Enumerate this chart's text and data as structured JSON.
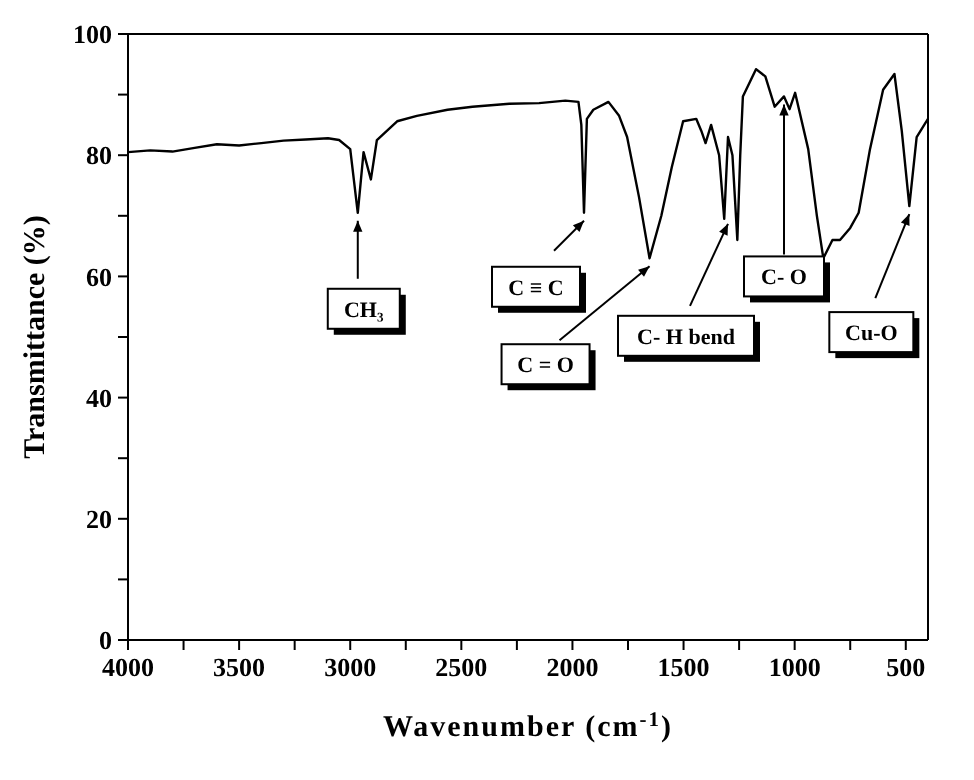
{
  "chart_data": {
    "type": "line",
    "xlabel": "Wavenumber (cm$^{-1}$)",
    "ylabel": "Transmittance (%)",
    "x": [
      4000,
      3900,
      3800,
      3700,
      3600,
      3500,
      3400,
      3300,
      3200,
      3100,
      3050,
      3000,
      2966,
      2940,
      2907,
      2880,
      2789,
      2700,
      2562,
      2450,
      2284,
      2150,
      2032,
      1973,
      1960,
      1948,
      1935,
      1906,
      1838,
      1790,
      1754,
      1700,
      1653,
      1600,
      1553,
      1502,
      1443,
      1420,
      1401,
      1376,
      1340,
      1317,
      1300,
      1280,
      1258,
      1245,
      1233,
      1174,
      1132,
      1090,
      1048,
      1023,
      998,
      939,
      900,
      871,
      830,
      796,
      750,
      712,
      661,
      602,
      551,
      518,
      484,
      451,
      417,
      400
    ],
    "series": [
      {
        "color": "#000000",
        "values": [
          80.5,
          80.8,
          80.6,
          81.2,
          81.8,
          81.6,
          82.0,
          82.4,
          82.6,
          82.8,
          82.5,
          81.0,
          70.5,
          80.5,
          76.0,
          82.5,
          85.6,
          86.5,
          87.5,
          88.0,
          88.5,
          88.6,
          89.0,
          88.8,
          85.0,
          70.5,
          86.0,
          87.5,
          88.8,
          86.5,
          83.0,
          73.0,
          63.0,
          70.0,
          78.0,
          85.6,
          86.0,
          84.0,
          82.0,
          85.0,
          80.0,
          69.5,
          83.0,
          80.0,
          66.0,
          80.0,
          89.7,
          94.2,
          93.0,
          88.0,
          89.7,
          87.6,
          90.3,
          81.0,
          70.0,
          63.0,
          66.0,
          66.0,
          68.0,
          70.5,
          81.0,
          90.8,
          93.4,
          84.0,
          71.6,
          83.0,
          85.0,
          86.0
        ]
      }
    ],
    "xlim": [
      4000,
      400
    ],
    "xticks": [
      4000,
      {
        "value": 3750,
        "label": null
      },
      3500,
      {
        "value": 3250,
        "label": null
      },
      3000,
      {
        "value": 2750,
        "label": null
      },
      2500,
      {
        "value": 2250,
        "label": null
      },
      2000,
      {
        "value": 1750,
        "label": null
      },
      1500,
      {
        "value": 1250,
        "label": null
      },
      1000,
      {
        "value": 750,
        "label": null
      },
      500
    ],
    "ylim": [
      0,
      100
    ],
    "yticks": [
      0,
      {
        "value": 10,
        "label": null
      },
      20,
      {
        "value": 30,
        "label": null
      },
      40,
      {
        "value": 50,
        "label": null
      },
      60,
      {
        "value": 70,
        "label": null
      },
      80,
      {
        "value": 90,
        "label": null
      },
      100
    ],
    "grid": false,
    "legend": false,
    "marker": "none",
    "line_style": "solid",
    "annotations": [
      {
        "text": "CH₃",
        "x": 2966,
        "y": 70.5
      },
      {
        "text": "C ≡ C",
        "x": 1948,
        "y": 70.5
      },
      {
        "text": "C = O",
        "x": 1653,
        "y": 63
      },
      {
        "text": "C- H bend",
        "x": 1300,
        "y": 70
      },
      {
        "text": "C- O",
        "x": 1048,
        "y": 89.7
      },
      {
        "text": "Cu-O",
        "x": 484,
        "y": 71.6
      }
    ]
  }
}
